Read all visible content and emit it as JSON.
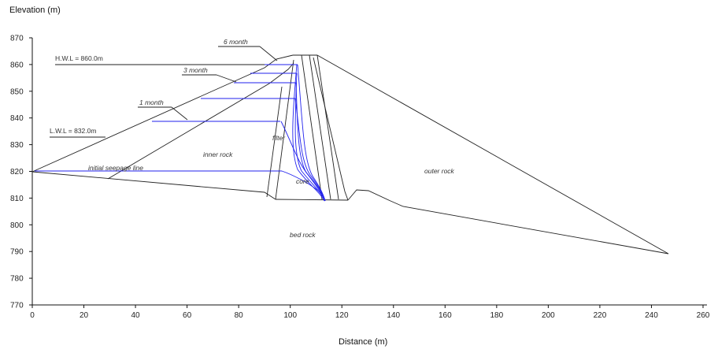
{
  "axes": {
    "y_title": "Elevation (m)",
    "x_title": "Distance (m)",
    "x_ticks": [
      "0",
      "20",
      "40",
      "60",
      "80",
      "100",
      "120",
      "140",
      "160",
      "180",
      "200",
      "220",
      "240",
      "260"
    ],
    "y_ticks": [
      "870",
      "860",
      "850",
      "840",
      "830",
      "820",
      "810",
      "800",
      "790",
      "780",
      "770"
    ],
    "x_range": [
      0,
      260
    ],
    "y_range": [
      770,
      870
    ]
  },
  "labels": {
    "hwl": "H.W.L = 860.0m",
    "lwl": "L.W.L = 832.0m",
    "month6": "6 month",
    "month3": "3 month",
    "month1": "1 month",
    "initial": "initial seepage line",
    "inner_rock": "inner rock",
    "outer_rock": "outer rock",
    "filter": "filter",
    "core": "core",
    "bed_rock": "bed rock"
  },
  "colors": {
    "structure": "#222222",
    "seepage": "#2222ee"
  }
}
